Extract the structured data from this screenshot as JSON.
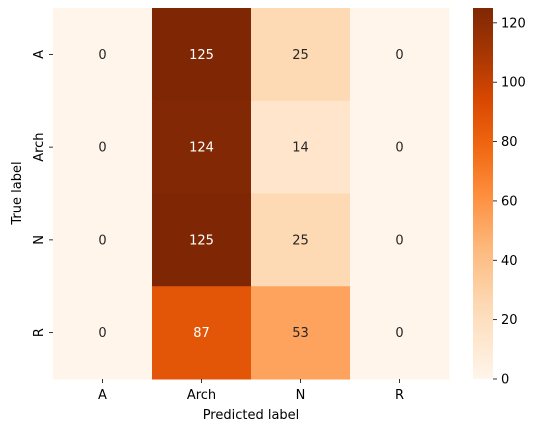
{
  "chart_data": {
    "type": "heatmap",
    "title": "",
    "xlabel": "Predicted label",
    "ylabel": "True label",
    "x_categories": [
      "A",
      "Arch",
      "N",
      "R"
    ],
    "y_categories": [
      "A",
      "Arch",
      "N",
      "R"
    ],
    "values": [
      [
        0,
        125,
        25,
        0
      ],
      [
        0,
        124,
        14,
        0
      ],
      [
        0,
        125,
        25,
        0
      ],
      [
        0,
        87,
        53,
        0
      ]
    ],
    "colormap": "Oranges",
    "color_range": [
      0,
      125
    ],
    "colorbar_ticks": [
      0,
      20,
      40,
      60,
      80,
      100,
      120
    ]
  }
}
